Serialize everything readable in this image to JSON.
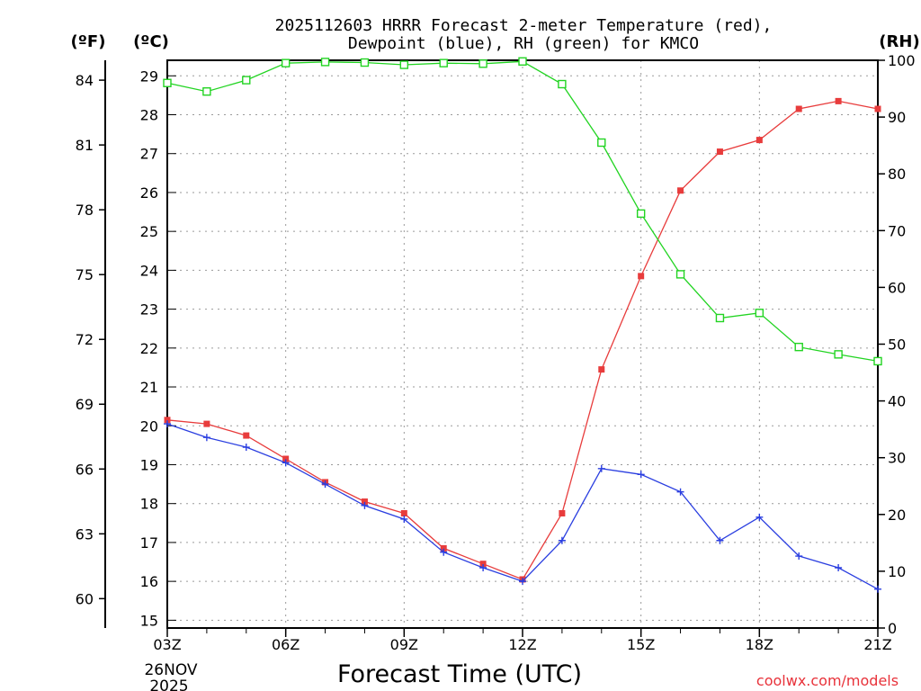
{
  "chart_data": {
    "type": "line",
    "title_line1": "2025112603 HRRR Forecast 2-meter Temperature (red),",
    "title_line2": "Dewpoint (blue), RH (green) for KMCO",
    "xlabel": "Forecast Time (UTC)",
    "left_outer_axis_label": "(ºF)",
    "left_inner_axis_label": "(ºC)",
    "right_axis_label": "(RH)",
    "date_line1": "26NOV",
    "date_line2": "2025",
    "credit": "coolwx.com/models",
    "x_hours": [
      0,
      1,
      2,
      3,
      4,
      5,
      6,
      7,
      8,
      9,
      10,
      11,
      12,
      13,
      14,
      15,
      16,
      17,
      18
    ],
    "x_ticks": [
      {
        "hour": 0,
        "label": "03Z"
      },
      {
        "hour": 3,
        "label": "06Z"
      },
      {
        "hour": 6,
        "label": "09Z"
      },
      {
        "hour": 9,
        "label": "12Z"
      },
      {
        "hour": 12,
        "label": "15Z"
      },
      {
        "hour": 15,
        "label": "18Z"
      },
      {
        "hour": 18,
        "label": "21Z"
      }
    ],
    "celsius_range": [
      14.8,
      29.4
    ],
    "celsius_ticks": [
      15,
      16,
      17,
      18,
      19,
      20,
      21,
      22,
      23,
      24,
      25,
      26,
      27,
      28,
      29
    ],
    "fahrenheit_ticks": [
      60,
      63,
      66,
      69,
      72,
      75,
      78,
      81,
      84
    ],
    "rh_range": [
      0,
      100
    ],
    "rh_ticks": [
      0,
      10,
      20,
      30,
      40,
      50,
      60,
      70,
      80,
      90,
      100
    ],
    "series": [
      {
        "name": "Temperature",
        "units": "C",
        "color": "#e83c3c",
        "marker": "filled-square",
        "values": [
          20.15,
          20.05,
          19.75,
          19.15,
          18.55,
          18.05,
          17.75,
          16.85,
          16.45,
          16.05,
          17.75,
          21.45,
          23.85,
          26.05,
          27.05,
          27.35,
          28.15,
          28.35,
          28.15
        ]
      },
      {
        "name": "Dewpoint",
        "units": "C",
        "color": "#2a3ee0",
        "marker": "plus",
        "values": [
          20.05,
          19.7,
          19.45,
          19.05,
          18.5,
          17.95,
          17.6,
          16.75,
          16.35,
          16.0,
          17.05,
          18.9,
          18.75,
          18.3,
          17.05,
          17.65,
          16.65,
          16.35,
          15.8
        ]
      },
      {
        "name": "RH",
        "units": "%",
        "color": "#22d422",
        "marker": "open-square",
        "values": [
          96,
          94.5,
          96.5,
          99.5,
          99.7,
          99.6,
          99.2,
          99.5,
          99.4,
          99.8,
          95.8,
          85.5,
          73,
          62.3,
          54.6,
          55.5,
          49.5,
          48.2,
          47
        ]
      }
    ]
  }
}
